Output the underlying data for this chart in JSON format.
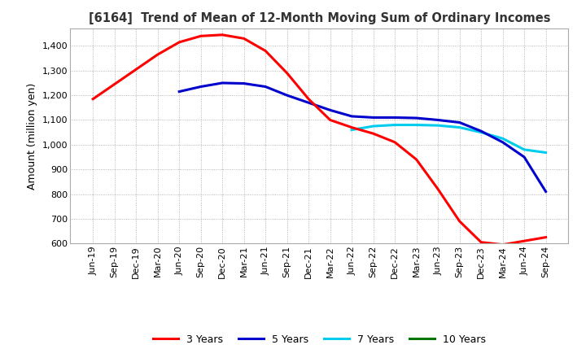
{
  "title": "[6164]  Trend of Mean of 12-Month Moving Sum of Ordinary Incomes",
  "ylabel": "Amount (million yen)",
  "ylim": [
    600,
    1470
  ],
  "yticks": [
    600,
    700,
    800,
    900,
    1000,
    1100,
    1200,
    1300,
    1400
  ],
  "line_colors": {
    "3yr": "#ff0000",
    "5yr": "#0000cc",
    "7yr": "#00ccee",
    "10yr": "#007700"
  },
  "legend": [
    "3 Years",
    "5 Years",
    "7 Years",
    "10 Years"
  ],
  "x_labels": [
    "Jun-19",
    "Sep-19",
    "Dec-19",
    "Mar-20",
    "Jun-20",
    "Sep-20",
    "Dec-20",
    "Mar-21",
    "Jun-21",
    "Sep-21",
    "Dec-21",
    "Mar-22",
    "Jun-22",
    "Sep-22",
    "Dec-22",
    "Mar-23",
    "Jun-23",
    "Sep-23",
    "Dec-23",
    "Mar-24",
    "Jun-24",
    "Sep-24"
  ],
  "data_3yr": [
    1185,
    1245,
    1305,
    1365,
    1415,
    1440,
    1445,
    1430,
    1380,
    1290,
    1185,
    1100,
    1070,
    1045,
    1010,
    940,
    820,
    690,
    605,
    595,
    610,
    625
  ],
  "data_5yr": [
    null,
    null,
    null,
    null,
    1215,
    1235,
    1250,
    1248,
    1235,
    1200,
    1170,
    1140,
    1115,
    1110,
    1110,
    1108,
    1100,
    1090,
    1055,
    1010,
    950,
    810
  ],
  "data_7yr": [
    null,
    null,
    null,
    null,
    null,
    null,
    null,
    null,
    null,
    null,
    null,
    null,
    1060,
    1075,
    1080,
    1080,
    1078,
    1070,
    1050,
    1025,
    980,
    968
  ],
  "data_10yr": [
    null,
    null,
    null,
    null,
    null,
    null,
    null,
    null,
    null,
    null,
    null,
    null,
    null,
    null,
    null,
    null,
    null,
    null,
    null,
    null,
    null,
    null
  ]
}
